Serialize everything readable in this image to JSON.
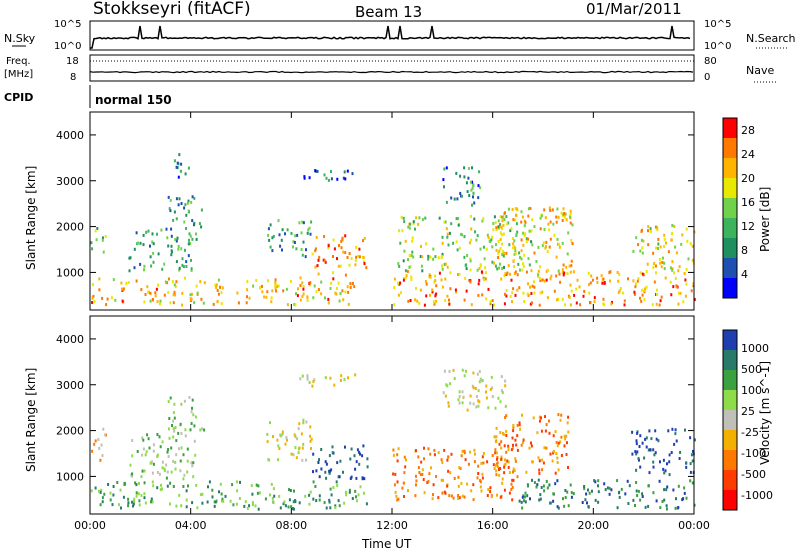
{
  "header": {
    "station": "Stokkseyri (fitACF)",
    "beam": "Beam 13",
    "date": "01/Mar/2011"
  },
  "params": {
    "nsky_label": "N.Sky",
    "nsky_ticks": [
      "10^5",
      "10^0"
    ],
    "nsearch_label": "N.Search",
    "nsearch_ticks": [
      "10^5",
      "10^0"
    ],
    "freq_label_1": "Freq.",
    "freq_label_2": "[MHz]",
    "freq_ticks": [
      "18",
      "8"
    ],
    "nave_label": "Nave",
    "nave_ticks": [
      "80",
      "0"
    ],
    "cpid_label": "CPID",
    "cpid_value": "normal 150"
  },
  "chart_data": [
    {
      "type": "heatmap",
      "name": "power",
      "xlabel": "Time UT",
      "ylabel": "Slant Range [km]",
      "xticks": [
        "00:00",
        "04:00",
        "08:00",
        "12:00",
        "16:00",
        "20:00",
        "00:00"
      ],
      "xlim_hours": [
        0,
        24
      ],
      "yticks": [
        "1000",
        "2000",
        "3000",
        "4000"
      ],
      "ylim_km": [
        180,
        4500
      ],
      "colorbar": {
        "label": "Power [dB]",
        "ticks": [
          "4",
          "8",
          "12",
          "16",
          "20",
          "24",
          "28"
        ],
        "range": [
          0,
          30
        ],
        "colors": [
          "#0000ff",
          "#1f4fb0",
          "#1f8f5f",
          "#3cb35c",
          "#6fd24a",
          "#e8e800",
          "#ffb400",
          "#ff7800",
          "#ff0000"
        ]
      },
      "regions": [
        {
          "t": [
            0.0,
            10.5
          ],
          "r": [
            250,
            850
          ],
          "level": 22
        },
        {
          "t": [
            0.0,
            0.6
          ],
          "r": [
            1400,
            2000
          ],
          "level": 14
        },
        {
          "t": [
            1.5,
            4.2
          ],
          "r": [
            1000,
            1900
          ],
          "level": 9
        },
        {
          "t": [
            3.0,
            4.5
          ],
          "r": [
            1900,
            2700
          ],
          "level": 11
        },
        {
          "t": [
            3.3,
            4.0
          ],
          "r": [
            3000,
            3600
          ],
          "level": 6
        },
        {
          "t": [
            7.0,
            8.8
          ],
          "r": [
            1300,
            2100
          ],
          "level": 10
        },
        {
          "t": [
            8.8,
            11.0
          ],
          "r": [
            900,
            1800
          ],
          "level": 25
        },
        {
          "t": [
            8.3,
            10.5
          ],
          "r": [
            2900,
            3200
          ],
          "level": 5
        },
        {
          "t": [
            12.0,
            24.0
          ],
          "r": [
            250,
            1000
          ],
          "level": 24
        },
        {
          "t": [
            12.2,
            17.5
          ],
          "r": [
            1000,
            2200
          ],
          "level": 15
        },
        {
          "t": [
            16.0,
            19.2
          ],
          "r": [
            800,
            2400
          ],
          "level": 21
        },
        {
          "t": [
            21.5,
            24.0
          ],
          "r": [
            1000,
            2000
          ],
          "level": 20
        },
        {
          "t": [
            14.0,
            15.5
          ],
          "r": [
            2400,
            3300
          ],
          "level": 8
        }
      ]
    },
    {
      "type": "heatmap",
      "name": "velocity",
      "xlabel": "Time UT",
      "ylabel": "Slant Range [km]",
      "xticks": [
        "00:00",
        "04:00",
        "08:00",
        "12:00",
        "16:00",
        "20:00",
        "00:00"
      ],
      "xlim_hours": [
        0,
        24
      ],
      "yticks": [
        "1000",
        "2000",
        "3000",
        "4000"
      ],
      "ylim_km": [
        180,
        4500
      ],
      "colorbar": {
        "label": "Velocity [m s^-1]",
        "ticks": [
          "1000",
          "500",
          "100",
          "25",
          "-25",
          "-100",
          "-500",
          "-1000"
        ],
        "colors": [
          "#1f3fb0",
          "#2a7a6a",
          "#3aa040",
          "#8fdc4a",
          "#c0c0b8",
          "#f2b000",
          "#ff7800",
          "#ff3c00",
          "#ff0000"
        ]
      },
      "regions": [
        {
          "t": [
            0.0,
            11.0
          ],
          "r": [
            250,
            850
          ],
          "level": 2
        },
        {
          "t": [
            0.0,
            0.6
          ],
          "r": [
            1300,
            2000
          ],
          "level": 5
        },
        {
          "t": [
            1.5,
            4.2
          ],
          "r": [
            900,
            1900
          ],
          "level": 3
        },
        {
          "t": [
            3.0,
            4.5
          ],
          "r": [
            1900,
            2700
          ],
          "level": 3
        },
        {
          "t": [
            7.0,
            8.8
          ],
          "r": [
            1300,
            2200
          ],
          "level": 4
        },
        {
          "t": [
            8.8,
            11.0
          ],
          "r": [
            900,
            1700
          ],
          "level": 0
        },
        {
          "t": [
            8.3,
            10.5
          ],
          "r": [
            2900,
            3200
          ],
          "level": 4
        },
        {
          "t": [
            12.0,
            17.0
          ],
          "r": [
            450,
            1600
          ],
          "level": 6
        },
        {
          "t": [
            17.0,
            24.0
          ],
          "r": [
            250,
            900
          ],
          "level": 1
        },
        {
          "t": [
            16.0,
            19.0
          ],
          "r": [
            1000,
            2400
          ],
          "level": 6
        },
        {
          "t": [
            21.5,
            24.0
          ],
          "r": [
            1000,
            2000
          ],
          "level": 0
        },
        {
          "t": [
            14.0,
            16.5
          ],
          "r": [
            2400,
            3300
          ],
          "level": 4
        }
      ]
    }
  ]
}
